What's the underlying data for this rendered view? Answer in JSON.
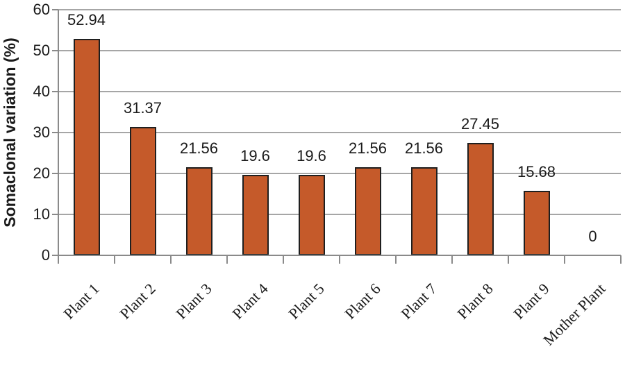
{
  "chart_data": {
    "type": "bar",
    "title": "",
    "xlabel": "",
    "ylabel": "Somaclonal variation (%)",
    "categories": [
      "Plant 1",
      "Plant 2",
      "Plant 3",
      "Plant 4",
      "Plant 5",
      "Plant 6",
      "Plant 7",
      "Plant 8",
      "Plant 9",
      "Mother Plant"
    ],
    "values": [
      52.94,
      31.37,
      21.56,
      19.6,
      19.6,
      21.56,
      21.56,
      27.45,
      15.68,
      0
    ],
    "value_labels": [
      "52.94",
      "31.37",
      "21.56",
      "19.6",
      "19.6",
      "21.56",
      "21.56",
      "27.45",
      "15.68",
      "0"
    ],
    "ylim": [
      0,
      60
    ],
    "y_ticks": [
      0,
      10,
      20,
      30,
      40,
      50,
      60
    ],
    "grid": "horizontal",
    "legend": "none"
  },
  "colors": {
    "bar_fill": "#c55a2a",
    "bar_border": "#1f1f1f",
    "gridline": "#a6a6a6",
    "axis": "#8a8a8a",
    "text": "#1a1a1a",
    "background": "#ffffff"
  }
}
